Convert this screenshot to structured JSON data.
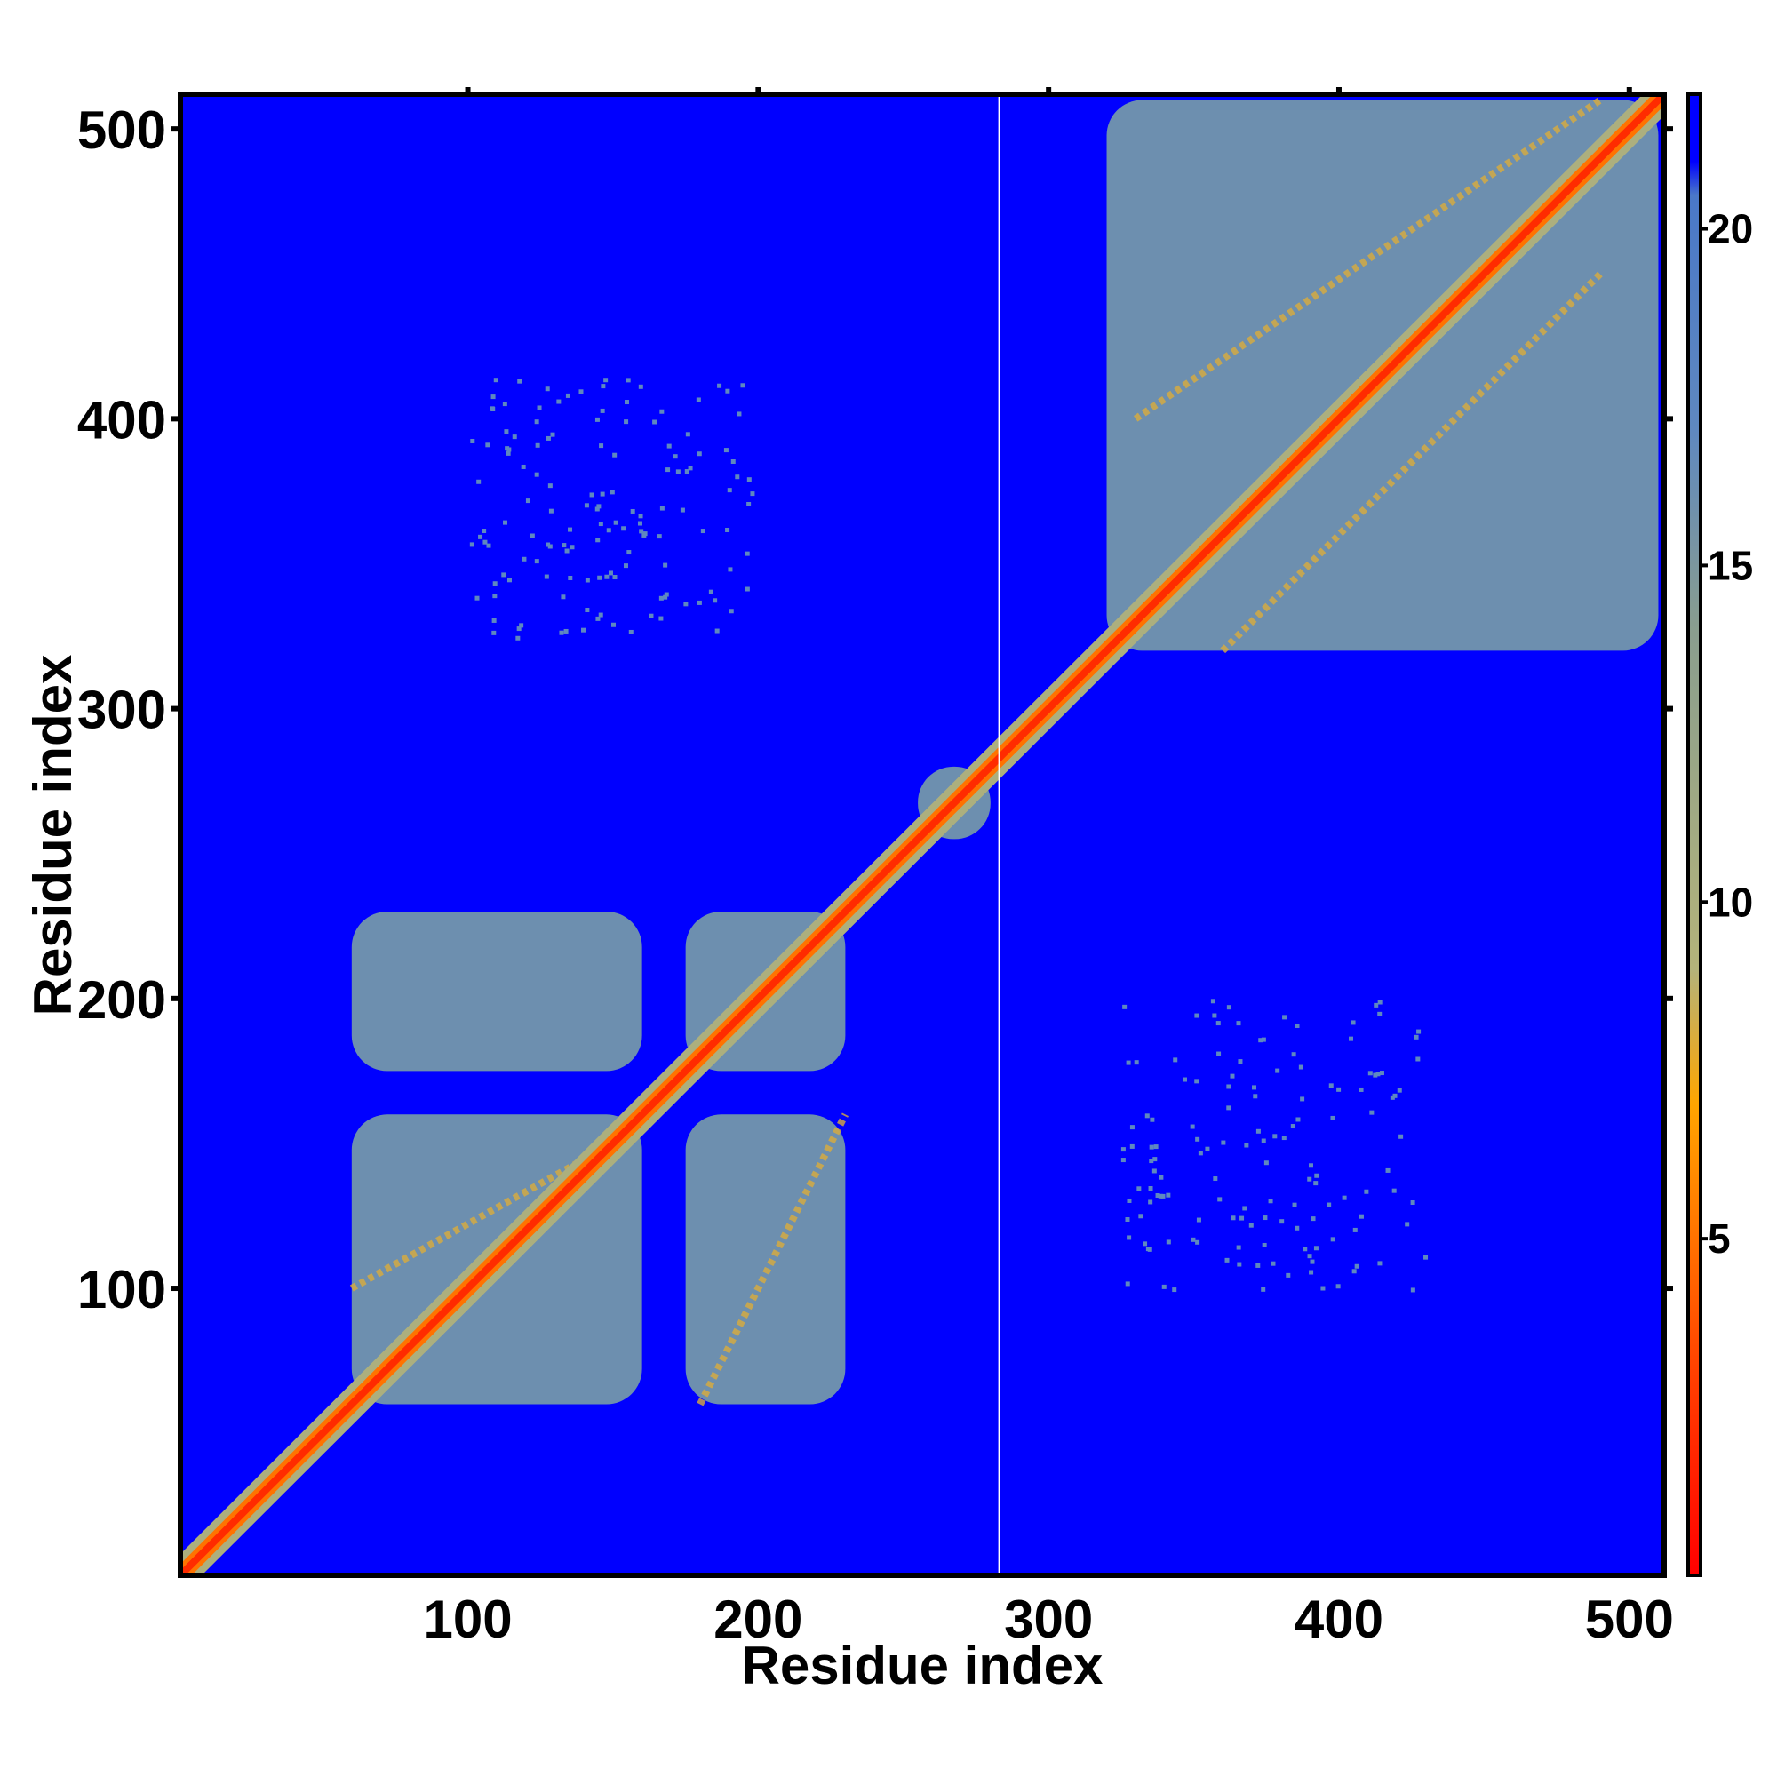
{
  "chart_data": {
    "type": "heatmap",
    "title": "",
    "xlabel": "Residue index",
    "ylabel": "Residue index",
    "xlim": [
      1,
      512
    ],
    "ylim": [
      1,
      512
    ],
    "x_ticks": [
      100,
      200,
      300,
      400,
      500
    ],
    "y_ticks": [
      100,
      200,
      300,
      400,
      500
    ],
    "marker_line_x": 283,
    "colorbar": {
      "ticks": [
        5,
        10,
        15,
        20
      ],
      "range": [
        0,
        22
      ],
      "stops": [
        {
          "value": 0,
          "color": "#ff0000"
        },
        {
          "value": 3,
          "color": "#ff4000"
        },
        {
          "value": 7,
          "color": "#ffa500"
        },
        {
          "value": 9,
          "color": "#b4b37a"
        },
        {
          "value": 14,
          "color": "#8a9e8e"
        },
        {
          "value": 17,
          "color": "#5f88bf"
        },
        {
          "value": 20.5,
          "color": "#4a78c8"
        },
        {
          "value": 21,
          "color": "#0000ff"
        },
        {
          "value": 22,
          "color": "#0000ff"
        }
      ]
    },
    "background_color": "#0000ff",
    "background_value": 22,
    "contact_regions": [
      {
        "x": [
          60,
          160
        ],
        "y": [
          60,
          160
        ],
        "value": 16
      },
      {
        "x": [
          60,
          160
        ],
        "y": [
          175,
          230
        ],
        "value": 16
      },
      {
        "x": [
          175,
          230
        ],
        "y": [
          60,
          160
        ],
        "value": 16
      },
      {
        "x": [
          175,
          230
        ],
        "y": [
          175,
          230
        ],
        "value": 16
      },
      {
        "x": [
          320,
          510
        ],
        "y": [
          320,
          510
        ],
        "value": 16
      },
      {
        "x": [
          255,
          280
        ],
        "y": [
          255,
          280
        ],
        "value": 16
      }
    ],
    "sparse_regions": [
      {
        "x": [
          100,
          200
        ],
        "y": [
          325,
          415
        ],
        "value": 17
      },
      {
        "x": [
          325,
          430
        ],
        "y": [
          100,
          200
        ],
        "value": 17
      }
    ],
    "diagonal_band": {
      "width": 6,
      "value": 2
    },
    "off_diagonal_features": [
      {
        "from": [
          330,
          400
        ],
        "to": [
          490,
          510
        ],
        "value": 8
      },
      {
        "from": [
          360,
          320
        ],
        "to": [
          490,
          450
        ],
        "value": 8
      },
      {
        "from": [
          60,
          100
        ],
        "to": [
          150,
          150
        ],
        "value": 8
      },
      {
        "from": [
          180,
          60
        ],
        "to": [
          230,
          160
        ],
        "value": 8
      }
    ]
  }
}
